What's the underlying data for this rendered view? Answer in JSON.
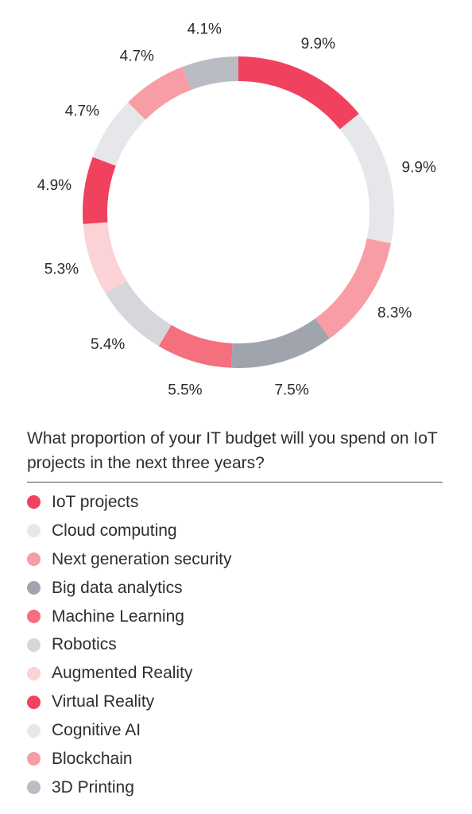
{
  "chart_data": {
    "type": "donut",
    "title": "What proportion of your IT budget will you spend on IoT projects in the next three years?",
    "value_unit": "%",
    "categories": [
      "IoT projects",
      "Cloud computing",
      "Next generation security",
      "Big data analytics",
      "Machine Learning",
      "Robotics",
      "Augmented Reality",
      "Virtual Reality",
      "Cognitive AI",
      "Blockchain",
      "3D Printing"
    ],
    "values": [
      9.9,
      9.9,
      8.3,
      7.5,
      5.5,
      5.4,
      5.3,
      4.9,
      4.7,
      4.7,
      4.1
    ],
    "labels": [
      "9.9%",
      "9.9%",
      "8.3%",
      "7.5%",
      "5.5%",
      "5.4%",
      "5.3%",
      "4.9%",
      "4.7%",
      "4.7%",
      "4.1%"
    ],
    "colors": [
      "#f0425e",
      "#e6e7ea",
      "#f89ca6",
      "#a0a5ad",
      "#f4707f",
      "#d5d7db",
      "#fbd2d6",
      "#f0425e",
      "#e6e7ea",
      "#f89ca6",
      "#b9bcc3"
    ],
    "legend_position": "bottom",
    "start_angle": "top"
  }
}
